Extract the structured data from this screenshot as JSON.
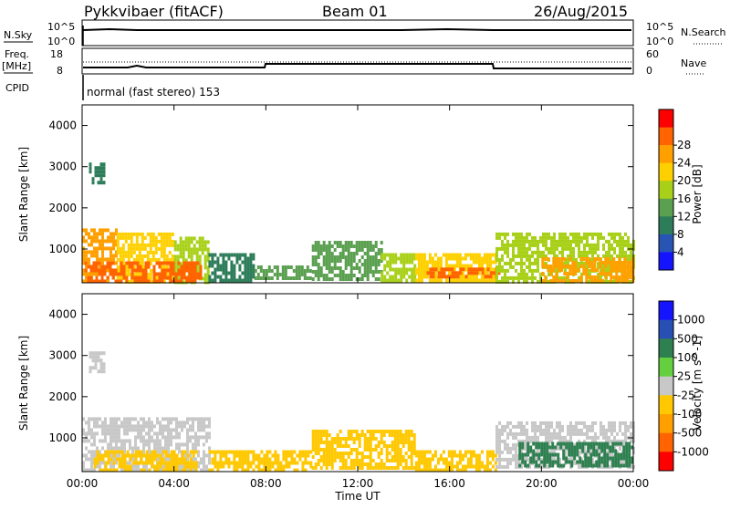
{
  "header": {
    "radar_title": "Pykkvibaer (fitACF)",
    "beam": "Beam 01",
    "date": "26/Aug/2015"
  },
  "top_panels": {
    "nsky_label": "N.Sky",
    "nsky_ticks": [
      "10^5",
      "10^0"
    ],
    "nsearch_label": "N.Search",
    "nsearch_ticks": [
      "10^5",
      "10^0"
    ],
    "freq_label_1": "Freq.",
    "freq_label_2": "[MHz]",
    "freq_ticks": [
      "18",
      "8"
    ],
    "nave_label": "Nave",
    "nave_ticks": [
      "60",
      "0"
    ],
    "cpid_label": "CPID",
    "cpid_text": "normal (fast stereo) 153"
  },
  "chart_data": [
    {
      "type": "heatmap",
      "panel": "power",
      "ylabel": "Slant Range [km]",
      "yticks": [
        "1000",
        "2000",
        "3000",
        "4000"
      ],
      "ylim": [
        180,
        4500
      ],
      "xlim_hours": [
        0,
        24
      ],
      "colorbar_label": "Power [dB]",
      "colorbar_ticks": [
        "4",
        "8",
        "12",
        "16",
        "20",
        "24",
        "28"
      ],
      "colorbar_colors": [
        "#1414ff",
        "#2855b4",
        "#2e7d5a",
        "#5aa050",
        "#a8d018",
        "#ffd000",
        "#ffa000",
        "#ff6400",
        "#ff0000"
      ],
      "regions": [
        {
          "t0": 0.0,
          "t1": 1.5,
          "r0": 200,
          "r1": 1500,
          "value": 24
        },
        {
          "t0": 1.5,
          "t1": 4.0,
          "r0": 200,
          "r1": 1400,
          "value": 20
        },
        {
          "t0": 4.0,
          "t1": 5.5,
          "r0": 200,
          "r1": 1300,
          "value": 16
        },
        {
          "t0": 0.1,
          "t1": 5.2,
          "r0": 200,
          "r1": 700,
          "value": 28
        },
        {
          "t0": 5.5,
          "t1": 7.5,
          "r0": 200,
          "r1": 900,
          "value": 8
        },
        {
          "t0": 7.5,
          "t1": 10.0,
          "r0": 250,
          "r1": 600,
          "value": 12
        },
        {
          "t0": 10.0,
          "t1": 13.0,
          "r0": 250,
          "r1": 1200,
          "value": 12
        },
        {
          "t0": 13.0,
          "t1": 14.5,
          "r0": 250,
          "r1": 900,
          "value": 16
        },
        {
          "t0": 14.5,
          "t1": 18.0,
          "r0": 250,
          "r1": 900,
          "value": 20
        },
        {
          "t0": 15.0,
          "t1": 18.2,
          "r0": 300,
          "r1": 550,
          "value": 28
        },
        {
          "t0": 18.0,
          "t1": 24.0,
          "r0": 200,
          "r1": 1400,
          "value": 16
        },
        {
          "t0": 20.0,
          "t1": 24.0,
          "r0": 250,
          "r1": 800,
          "value": 24
        },
        {
          "t0": 0.3,
          "t1": 1.0,
          "r0": 2600,
          "r1": 3100,
          "value": 8
        }
      ]
    },
    {
      "type": "heatmap",
      "panel": "velocity",
      "ylabel": "Slant Range [km]",
      "yticks": [
        "1000",
        "2000",
        "3000",
        "4000"
      ],
      "ylim": [
        180,
        4500
      ],
      "xlim_hours": [
        0,
        24
      ],
      "xticks": [
        "00:00",
        "04:00",
        "08:00",
        "12:00",
        "16:00",
        "20:00",
        "00:00"
      ],
      "xlabel": "Time UT",
      "colorbar_label": "Velocity [m s^-1]",
      "colorbar_ticks": [
        "-1000",
        "-500",
        "-100",
        "-25",
        "25",
        "100",
        "500",
        "1000"
      ],
      "colorbar_colors": [
        "#ff0000",
        "#ff6400",
        "#ffa000",
        "#ffc800",
        "#c8c8c8",
        "#64d040",
        "#2e8050",
        "#2850b4",
        "#1414ff"
      ],
      "regions": [
        {
          "t0": 0.0,
          "t1": 5.5,
          "r0": 200,
          "r1": 1500,
          "value": 0
        },
        {
          "t0": 0.5,
          "t1": 5.0,
          "r0": 250,
          "r1": 700,
          "value": -100
        },
        {
          "t0": 5.5,
          "t1": 10.0,
          "r0": 250,
          "r1": 700,
          "value": -100
        },
        {
          "t0": 10.0,
          "t1": 14.5,
          "r0": 250,
          "r1": 1200,
          "value": -100
        },
        {
          "t0": 14.5,
          "t1": 18.0,
          "r0": 250,
          "r1": 700,
          "value": -100
        },
        {
          "t0": 18.0,
          "t1": 24.0,
          "r0": 250,
          "r1": 1400,
          "value": 0
        },
        {
          "t0": 19.0,
          "t1": 24.0,
          "r0": 300,
          "r1": 900,
          "value": 100
        },
        {
          "t0": 0.3,
          "t1": 1.0,
          "r0": 2600,
          "r1": 3100,
          "value": 0
        }
      ]
    }
  ]
}
